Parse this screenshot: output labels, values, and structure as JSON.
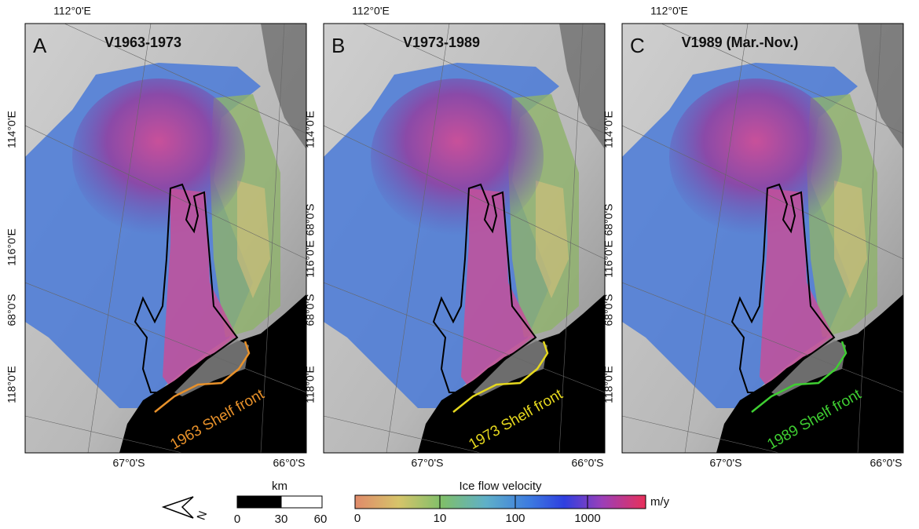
{
  "panels": [
    {
      "letter": "A",
      "title": "V1963-1973",
      "top_label": "112°0'E",
      "left_labels": [
        "114°0'E",
        "116°0'E",
        "68°0'S",
        "118°0'E"
      ],
      "bottom_labels": [
        "67°0'S",
        "66°0'S"
      ],
      "front_label": "1963 Shelf front",
      "front_color": "#e8912a"
    },
    {
      "letter": "B",
      "title": "V1973-1989",
      "top_label": "112°0'E",
      "left_labels": [
        "114°0'E",
        "68°0'S",
        "116°0'E",
        "68°0'S",
        "118°0'E"
      ],
      "bottom_labels": [
        "67°0'S",
        "66°0'S"
      ],
      "front_label": "1973 Shelf front",
      "front_color": "#e6d81e"
    },
    {
      "letter": "C",
      "title": "V1989 (Mar.-Nov.)",
      "top_label": "112°0'E",
      "left_labels": [
        "114°0'E",
        "68°0'S",
        "116°0'E",
        "68°0'S",
        "118°0'E"
      ],
      "bottom_labels": [
        "67°0'S",
        "66°0'S"
      ],
      "front_label": "1989 Shelf front",
      "front_color": "#3fcf32"
    }
  ],
  "north_arrow": "N",
  "scale_bar": {
    "unit": "km",
    "ticks": [
      "0",
      "30",
      "60"
    ]
  },
  "legend": {
    "title": "Ice flow velocity",
    "ticks": [
      "0",
      "10",
      "100",
      "1000"
    ],
    "unit": "m/y"
  }
}
